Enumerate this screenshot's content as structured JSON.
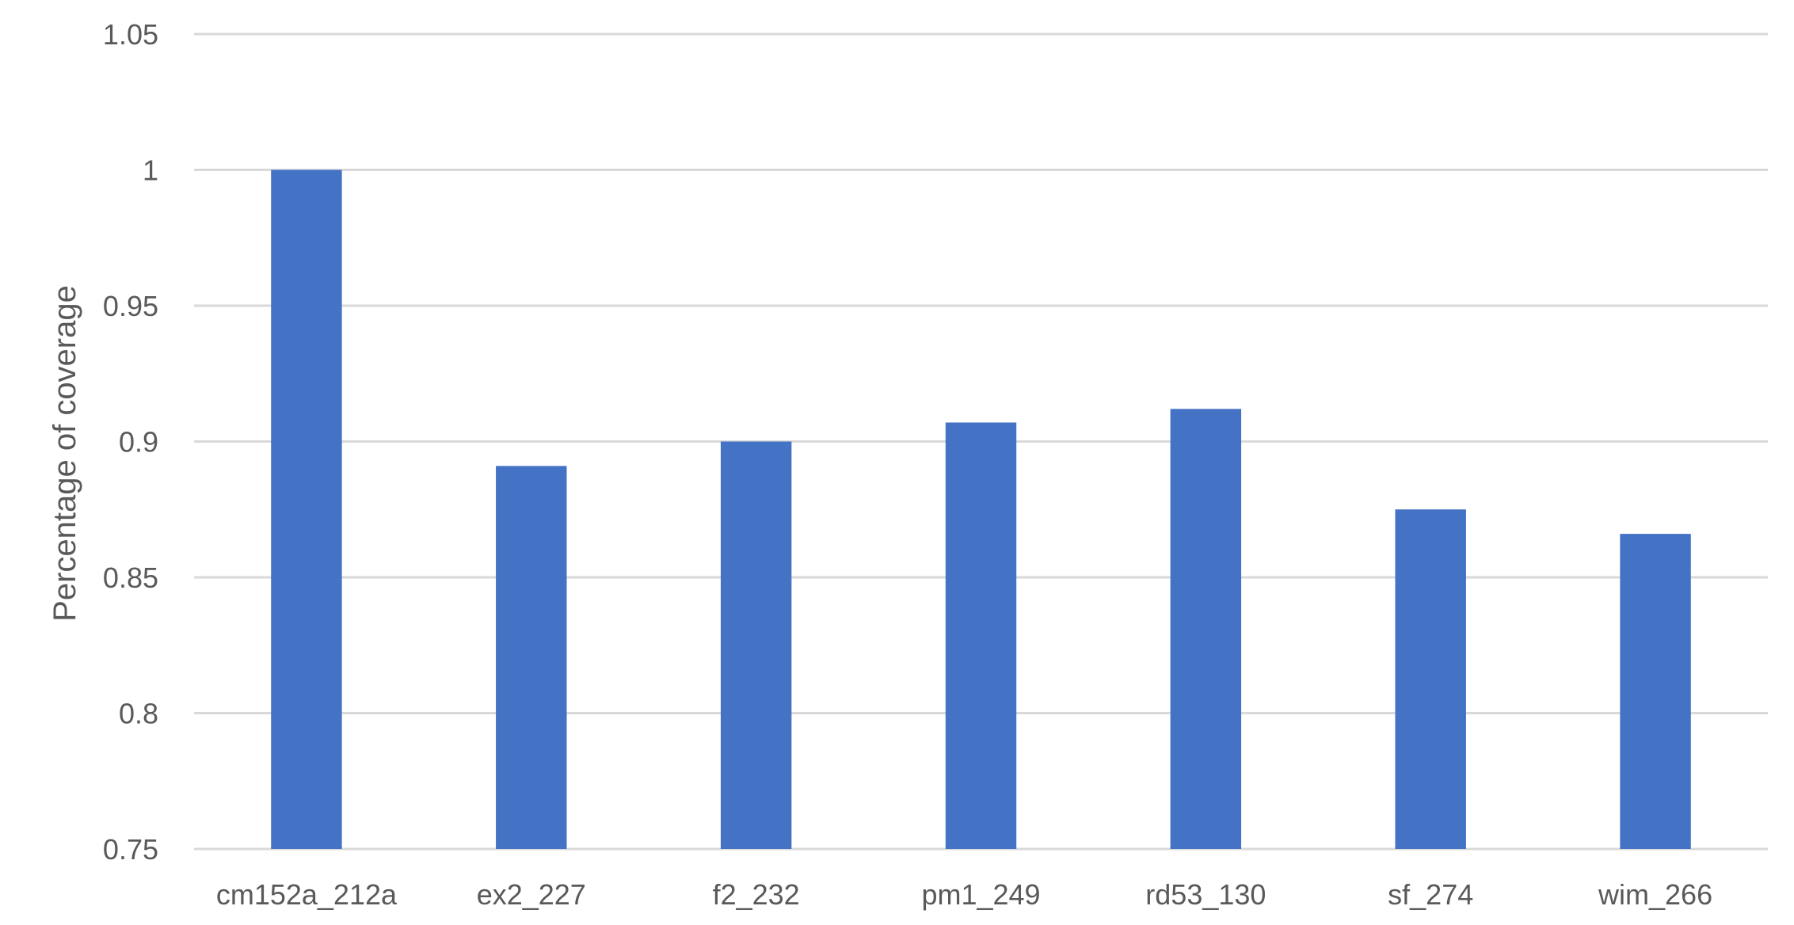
{
  "chart_data": {
    "type": "bar",
    "title": "",
    "xlabel": "",
    "ylabel": "Percentage of coverage",
    "categories": [
      "cm152a_212a",
      "ex2_227",
      "f2_232",
      "pm1_249",
      "rd53_130",
      "sf_274",
      "wim_266"
    ],
    "values": [
      1.0,
      0.891,
      0.9,
      0.907,
      0.912,
      0.875,
      0.866
    ],
    "ylim": [
      0.75,
      1.05
    ],
    "yticks": [
      "0.75",
      "0.8",
      "0.85",
      "0.9",
      "0.95",
      "1",
      "1.05"
    ],
    "grid": true,
    "legend": "none",
    "bar_color": "#4472c4",
    "grid_color": "#d9d9d9",
    "text_color": "#595959"
  }
}
